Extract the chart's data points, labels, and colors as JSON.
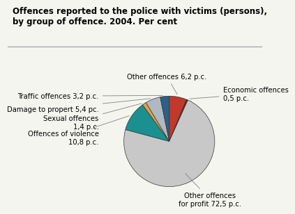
{
  "title": "Offences reported to the police with victims (persons),\nby group of offence. 2004. Per cent",
  "values": [
    72.5,
    0.5,
    6.2,
    3.2,
    5.4,
    1.4,
    10.8
  ],
  "colors": [
    "#c8c8c8",
    "#6b1a10",
    "#c0392b",
    "#2c5f8a",
    "#b0b8c0",
    "#e8a040",
    "#1a9090"
  ],
  "labels": [
    "Other offences\nfor profit 72,5 p.c.",
    "Economic offences\n0,5 p.c.",
    "Other offences 6,2 p.c.",
    "Traffic offences 3,2 p.c.",
    "Damage to propert 5,4 pc.",
    "Sexual offences\n1,4 p.c.",
    "Offences of violence\n10,8 p.c."
  ],
  "background_color": "#f5f5f0",
  "title_fontsize": 8.5,
  "label_fontsize": 7.2
}
